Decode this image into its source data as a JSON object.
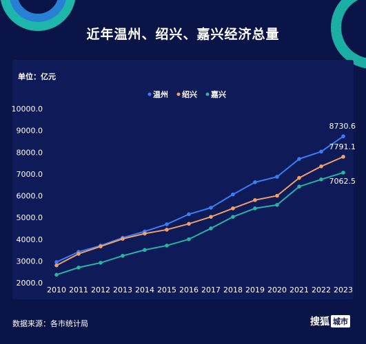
{
  "title": "近年温州、绍兴、嘉兴经济总量",
  "unit": "单位：亿元",
  "source": "数据来源：各市统计局",
  "brand": {
    "name": "搜狐",
    "tag": "城市"
  },
  "chart_data": {
    "type": "line",
    "x": [
      "2010",
      "2011",
      "2012",
      "2013",
      "2014",
      "2015",
      "2016",
      "2017",
      "2018",
      "2019",
      "2020",
      "2021",
      "2022",
      "2023"
    ],
    "ylim": [
      2000,
      10000
    ],
    "yticks": [
      "2000.0",
      "3000.0",
      "4000.0",
      "5000.0",
      "6000.0",
      "7000.0",
      "8000.0",
      "9000.0",
      "10000.0"
    ],
    "legend_position": "top-center",
    "series": [
      {
        "name": "温州",
        "color": "#3d7cf2",
        "values": [
          2950,
          3420,
          3710,
          4070,
          4360,
          4690,
          5150,
          5450,
          6060,
          6620,
          6870,
          7690,
          8030,
          8730.6
        ]
      },
      {
        "name": "绍兴",
        "color": "#f0a06a",
        "values": [
          2800,
          3330,
          3670,
          4020,
          4260,
          4440,
          4710,
          5030,
          5420,
          5800,
          6000,
          6820,
          7350,
          7791.1
        ]
      },
      {
        "name": "嘉兴",
        "color": "#27b3a6",
        "values": [
          2370,
          2700,
          2920,
          3240,
          3510,
          3710,
          4000,
          4500,
          5030,
          5420,
          5580,
          6420,
          6750,
          7062.5
        ]
      }
    ],
    "end_labels": [
      "8730.6",
      "7791.1",
      "7062.5"
    ]
  }
}
